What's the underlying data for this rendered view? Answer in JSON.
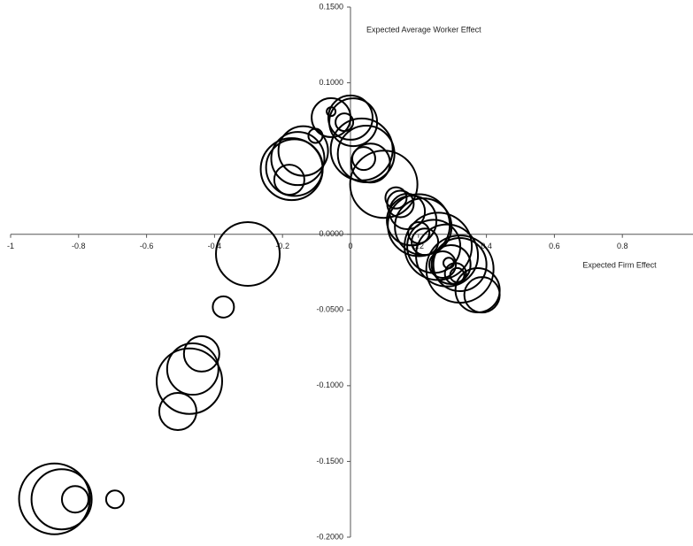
{
  "chart_data": {
    "type": "bubble",
    "x_label": "Expected Firm Effect",
    "y_label": "Expected Average Worker Effect",
    "x": [
      -0.871,
      -0.85,
      -0.81,
      -0.693,
      -0.508,
      -0.474,
      -0.464,
      -0.438,
      -0.374,
      -0.302,
      -0.173,
      -0.165,
      -0.155,
      -0.139,
      -0.18,
      -0.103,
      -0.057,
      -0.057,
      -0.018,
      0,
      0.008,
      0.033,
      0.046,
      0.039,
      0.059,
      0.098,
      0.134,
      0.147,
      0.167,
      0.18,
      0.201,
      0.214,
      0.201,
      0.219,
      0.245,
      0.258,
      0.284,
      0.271,
      0.296,
      0.289,
      0.309,
      0.314,
      0.322,
      0.374,
      0.387,
      0.322
    ],
    "values": [
      -0.1747,
      -0.175,
      -0.175,
      -0.175,
      -0.117,
      -0.097,
      -0.089,
      -0.079,
      -0.048,
      -0.013,
      0.043,
      0.044,
      0.05,
      0.055,
      0.036,
      0.065,
      0.081,
      0.077,
      0.074,
      0.077,
      0.074,
      0.056,
      0.053,
      0.05,
      0.047,
      0.033,
      0.024,
      0.02,
      0.015,
      0.009,
      0.006,
      0.005,
      0.001,
      -0.005,
      -0.008,
      -0.008,
      -0.014,
      -0.02,
      -0.02,
      -0.019,
      -0.026,
      -0.027,
      -0.02,
      -0.037,
      -0.04,
      -0.023
    ],
    "sizes": [
      40,
      34,
      15,
      10,
      21,
      37,
      29,
      20,
      12,
      36,
      35,
      32,
      30,
      28,
      17,
      8,
      5,
      22,
      10,
      25,
      27,
      35,
      32,
      13,
      22,
      38,
      12,
      15,
      20,
      28,
      35,
      32,
      12,
      15,
      30,
      38,
      35,
      15,
      22,
      6,
      12,
      8,
      30,
      25,
      20,
      38
    ],
    "xlim": [
      -1,
      1
    ],
    "ylim": [
      -0.2,
      0.15
    ],
    "xticks": [
      -1,
      -0.8,
      -0.6,
      -0.4,
      -0.2,
      0,
      0.2,
      0.4,
      0.6,
      0.8
    ],
    "yticks": [
      {
        "value": 0.15,
        "label": "0.1500"
      },
      {
        "value": 0.1,
        "label": "0.1000"
      },
      {
        "value": 0,
        "label": "0.0000"
      },
      {
        "value": -0.05,
        "label": "-0.0500"
      },
      {
        "value": -0.1,
        "label": "-0.1000"
      },
      {
        "value": -0.15,
        "label": "-0.1500"
      },
      {
        "value": -0.2,
        "label": "-0.2000"
      }
    ],
    "color": "#000000"
  }
}
